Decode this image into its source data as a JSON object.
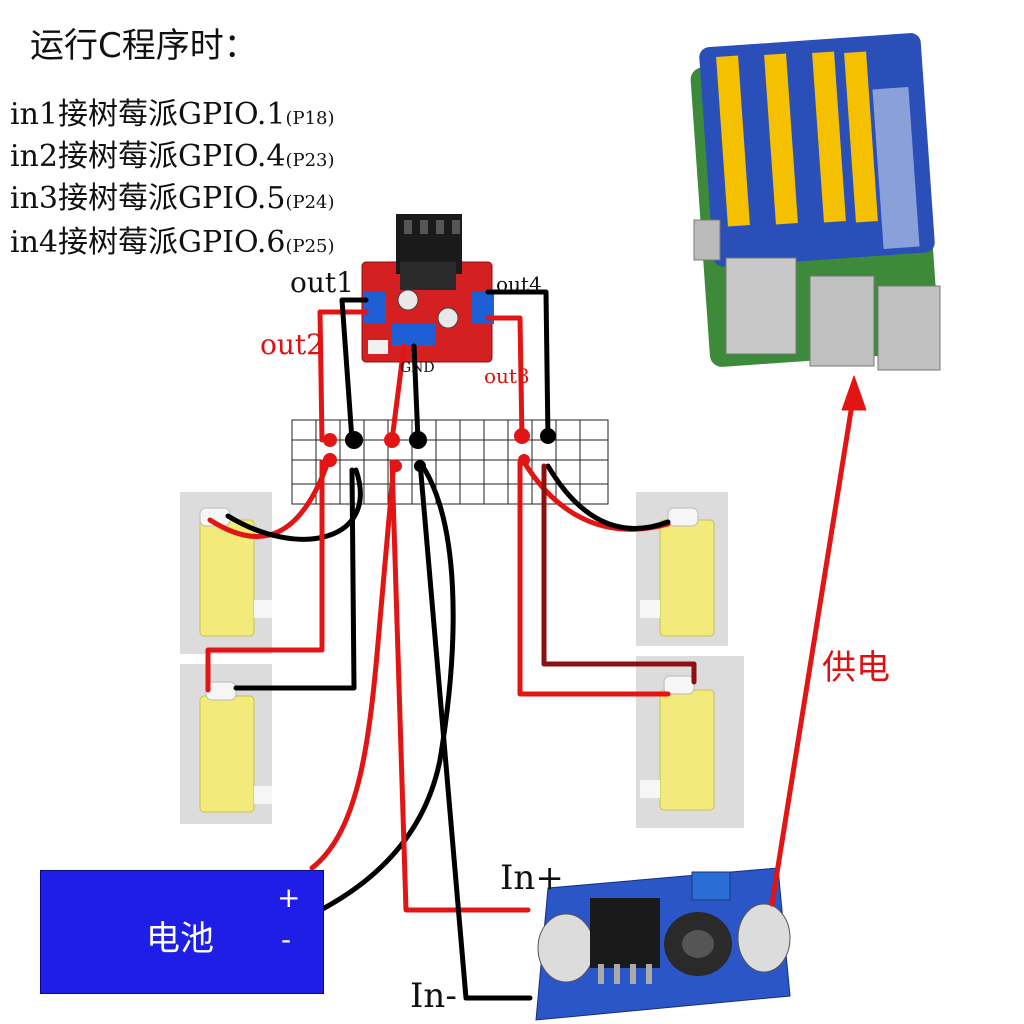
{
  "title": "运行C程序时：",
  "gpio_lines": [
    {
      "main": "in1接树莓派GPIO.1",
      "pin": "(P18)"
    },
    {
      "main": "in2接树莓派GPIO.4",
      "pin": "(P23)"
    },
    {
      "main": "in3接树莓派GPIO.5",
      "pin": "(P24)"
    },
    {
      "main": "in4接树莓派GPIO.6",
      "pin": "(P25)"
    }
  ],
  "driver_labels": {
    "out1": "out1",
    "out2": "out2",
    "out3": "out3",
    "out4": "out4",
    "gnd": "GND"
  },
  "battery": {
    "label": "电池",
    "plus": "+",
    "minus": "-"
  },
  "converter_labels": {
    "in_plus": "In+",
    "in_minus": "In-"
  },
  "power_label": "供电",
  "colors": {
    "wire_red": "#e31414",
    "wire_black": "#000000",
    "wire_darkred": "#8b1010",
    "battery_blue": "#1e1ee6",
    "driver_board": "#d42020",
    "motor_yellow": "#f2ea7a",
    "pi_green": "#3d8a3a",
    "gpio_header_yellow": "#f5c000",
    "converter_blue": "#2b56c8"
  }
}
